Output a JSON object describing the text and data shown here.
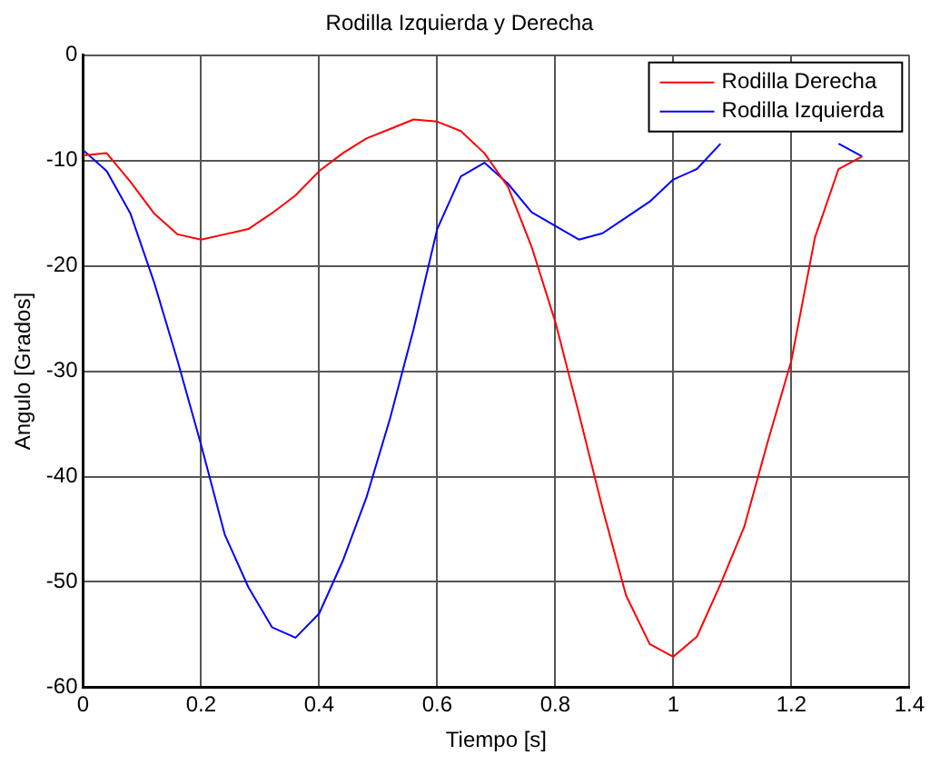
{
  "chart_data": {
    "type": "line",
    "title": "Rodilla Izquierda y Derecha",
    "xlabel": "Tiempo [s]",
    "ylabel": "Angulo [Grados]",
    "x": [
      0,
      0.04,
      0.08,
      0.12,
      0.16,
      0.2,
      0.24,
      0.28,
      0.32,
      0.36,
      0.4,
      0.44,
      0.48,
      0.52,
      0.56,
      0.6,
      0.64,
      0.68,
      0.72,
      0.76,
      0.8,
      0.84,
      0.88,
      0.92,
      0.96,
      1.0,
      1.04,
      1.08,
      1.12,
      1.16,
      1.2,
      1.24,
      1.28,
      1.32
    ],
    "series": [
      {
        "name": "Rodilla Derecha",
        "color": "#ff0000",
        "values": [
          -9.5,
          -9.3,
          -12,
          -15,
          -17,
          -17.5,
          -17,
          -16.5,
          -15,
          -13.3,
          -11,
          -9.3,
          -7.9,
          -7,
          -6.1,
          -6.3,
          -7.2,
          -9.3,
          -12.5,
          -18.2,
          -25.3,
          -34,
          -43,
          -51.3,
          -55.9,
          -57.1,
          -55.2,
          -50.2,
          -44.8,
          -36.7,
          -29,
          -17.3,
          -10.8,
          -9.6
        ]
      },
      {
        "name": "Rodilla Izquierda",
        "color": "#0000ff",
        "values": [
          -9,
          -11,
          -15,
          -21.5,
          -29,
          -37,
          -45.5,
          -50.5,
          -54.3,
          -55.3,
          -53,
          -48,
          -42,
          -34.5,
          -26,
          -16.5,
          -11.5,
          -10.2,
          -12.2,
          -14.9,
          -16.2,
          -17.5,
          -16.9,
          -15.4,
          -13.9,
          -11.8,
          -10.8,
          -8.4,
          null,
          null,
          null,
          null,
          -8.4,
          -9.6
        ]
      }
    ],
    "xlim": [
      0,
      1.4
    ],
    "xticks": [
      0,
      0.2,
      0.4,
      0.6,
      0.8,
      1,
      1.2,
      1.4
    ],
    "ylim": [
      -60,
      0
    ],
    "yticks": [
      -60,
      -50,
      -40,
      -30,
      -20,
      -10,
      0
    ],
    "grid": true,
    "legend": "top right",
    "marker": "none",
    "line_style": "solid"
  }
}
